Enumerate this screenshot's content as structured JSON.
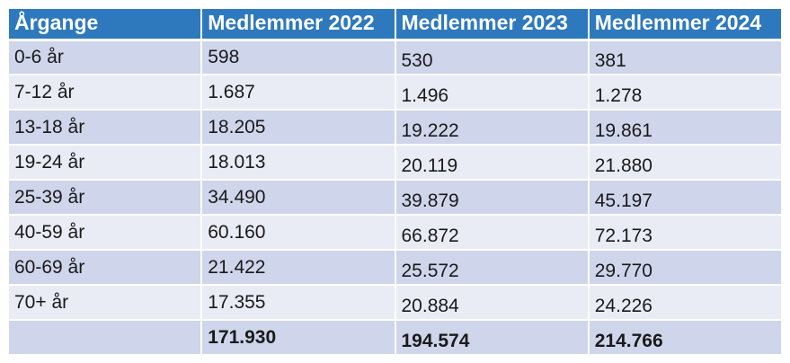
{
  "colors": {
    "header_bg": "#2E79BE",
    "header_text": "#FFFFFF",
    "band_dark": "#CFD5EA",
    "band_light": "#E9EBF5",
    "body_text": "#1A1A1A",
    "grid": "#FFFFFF"
  },
  "table": {
    "columns": [
      {
        "label": "Årgange"
      },
      {
        "label": "Medlemmer 2022"
      },
      {
        "label": "Medlemmer 2023"
      },
      {
        "label": "Medlemmer 2024"
      }
    ],
    "rows": [
      {
        "label": "0-6 år",
        "values": [
          "598",
          "530",
          "381"
        ]
      },
      {
        "label": "7-12 år",
        "values": [
          "1.687",
          "1.496",
          "1.278"
        ]
      },
      {
        "label": "13-18 år",
        "values": [
          "18.205",
          "19.222",
          "19.861"
        ]
      },
      {
        "label": "19-24 år",
        "values": [
          "18.013",
          "20.119",
          "21.880"
        ]
      },
      {
        "label": "25-39 år",
        "values": [
          "34.490",
          "39.879",
          "45.197"
        ]
      },
      {
        "label": "40-59 år",
        "values": [
          "60.160",
          "66.872",
          "72.173"
        ]
      },
      {
        "label": "60-69 år",
        "values": [
          "21.422",
          "25.572",
          "29.770"
        ]
      },
      {
        "label": "70+ år",
        "values": [
          "17.355",
          "20.884",
          "24.226"
        ]
      }
    ],
    "total": {
      "label": "",
      "values": [
        "171.930",
        "194.574",
        "214.766"
      ]
    }
  },
  "chart_data": {
    "type": "table",
    "title": "",
    "row_header": "Årgange",
    "categories": [
      "0-6 år",
      "7-12 år",
      "13-18 år",
      "19-24 år",
      "25-39 år",
      "40-59 år",
      "60-69 år",
      "70+ år"
    ],
    "series": [
      {
        "name": "Medlemmer 2022",
        "values": [
          598,
          1687,
          18205,
          18013,
          34490,
          60160,
          21422,
          17355
        ],
        "total": 171930
      },
      {
        "name": "Medlemmer 2023",
        "values": [
          530,
          1496,
          19222,
          20119,
          39879,
          66872,
          25572,
          20884
        ],
        "total": 194574
      },
      {
        "name": "Medlemmer 2024",
        "values": [
          381,
          1278,
          19861,
          21880,
          45197,
          72173,
          29770,
          24226
        ],
        "total": 214766
      }
    ],
    "layout": {
      "banded_rows": true,
      "header_fill": "#2E79BE",
      "grid": "white 2px separators"
    }
  }
}
